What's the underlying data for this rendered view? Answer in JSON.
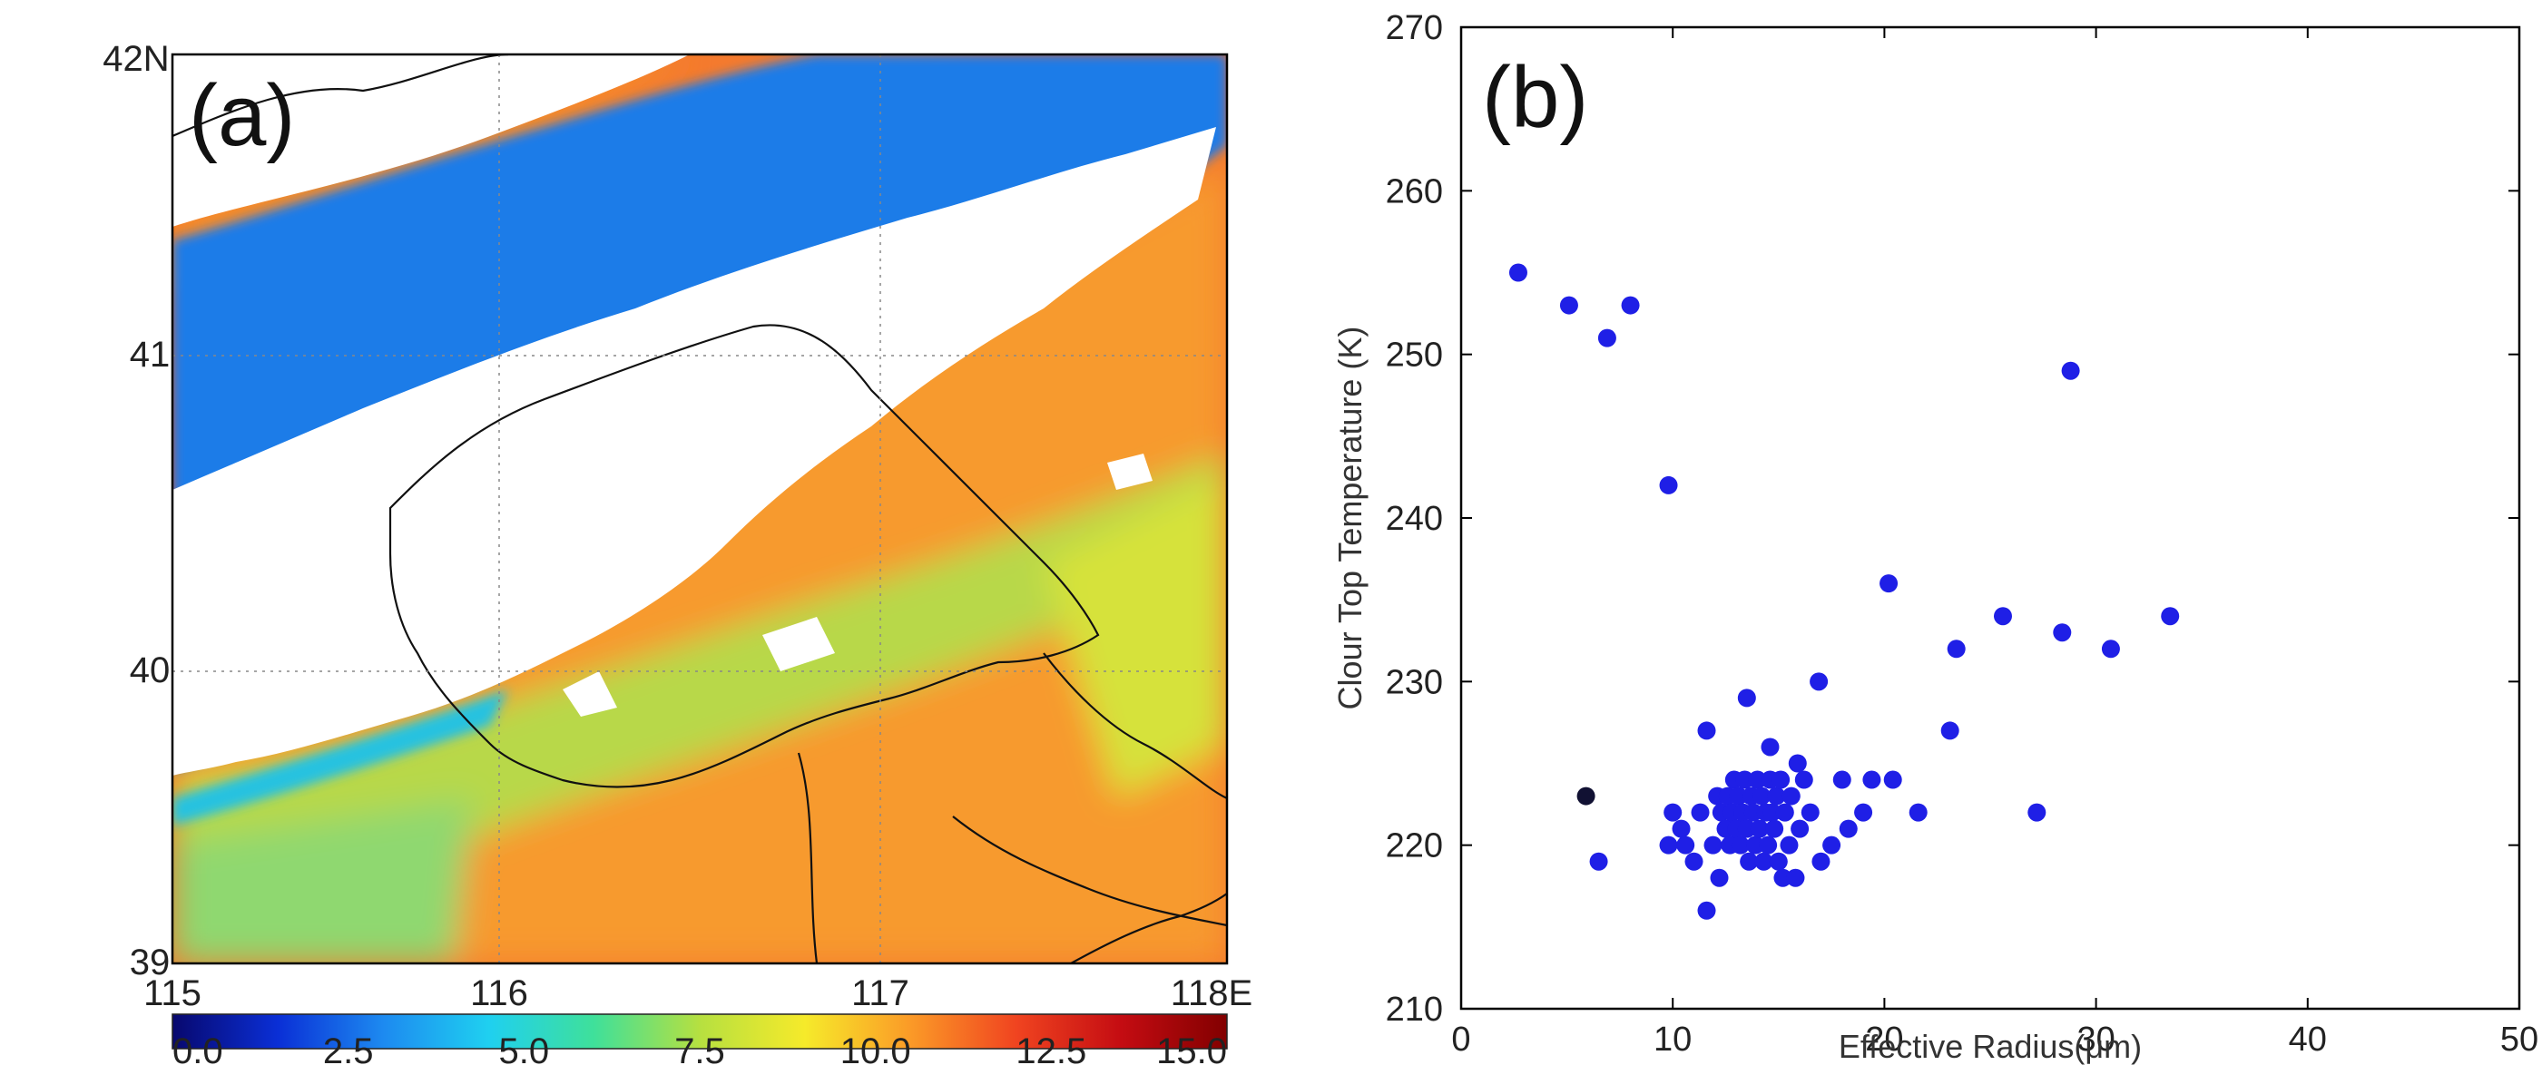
{
  "panel_a": {
    "label": "(a)",
    "x_ticks": [
      "115",
      "116",
      "117",
      "118E"
    ],
    "y_ticks": [
      "42N",
      "41",
      "40",
      "39"
    ],
    "colorbar": {
      "ticks": [
        "0.0",
        "2.5",
        "5.0",
        "7.5",
        "10.0",
        "12.5",
        "15.0"
      ],
      "min": 0,
      "max": 15,
      "colors": [
        "#08086e",
        "#0a2fd6",
        "#1d8af0",
        "#1fd0f0",
        "#3fe09a",
        "#b6e040",
        "#f6ea2a",
        "#fb9a27",
        "#f04420",
        "#c40c12",
        "#820000"
      ]
    },
    "map_colors": {
      "clear": "#ffffff",
      "low": "#2a62d8",
      "mid": "#9ed64a",
      "high": "#f05a28",
      "peak": "#c8141a",
      "border": "#000000"
    }
  },
  "chart_data": [
    {
      "type": "heatmap",
      "title": "(a)",
      "xlabel": "",
      "ylabel": "",
      "xlim": [
        115,
        118
      ],
      "ylim": [
        39,
        42
      ],
      "x_tick_labels": [
        "115",
        "116",
        "117",
        "118E"
      ],
      "y_tick_labels": [
        "42N",
        "41",
        "40",
        "39"
      ],
      "colorbar_range": [
        0,
        15
      ],
      "colorbar_tick_labels": [
        "0.0",
        "2.5",
        "5.0",
        "7.5",
        "10.0",
        "12.5",
        "15.0"
      ]
    },
    {
      "type": "scatter",
      "title": "(b)",
      "xlabel": "Effective Radius(μm)",
      "ylabel": "Clour Top Temperature (K)",
      "xlim": [
        0,
        50
      ],
      "ylim": [
        210,
        270
      ],
      "x_ticks": [
        0,
        10,
        20,
        30,
        40,
        50
      ],
      "y_ticks": [
        210,
        220,
        230,
        240,
        250,
        260,
        270
      ],
      "x_tick_labels": [
        "0",
        "10",
        "20",
        "30",
        "40",
        "50"
      ],
      "y_tick_labels": [
        "210",
        "220",
        "230",
        "240",
        "250",
        "260",
        "270"
      ],
      "point_color": "#1f1fe6",
      "highlight_color": "#111133",
      "points": [
        [
          2.7,
          255
        ],
        [
          5.1,
          253
        ],
        [
          6.9,
          251
        ],
        [
          8.0,
          253
        ],
        [
          9.8,
          242
        ],
        [
          28.8,
          249
        ],
        [
          20.2,
          236
        ],
        [
          25.6,
          234
        ],
        [
          28.4,
          233
        ],
        [
          30.7,
          232
        ],
        [
          33.5,
          234
        ],
        [
          23.4,
          232
        ],
        [
          16.9,
          230
        ],
        [
          13.5,
          229
        ],
        [
          23.1,
          227
        ],
        [
          11.6,
          227
        ],
        [
          14.6,
          226
        ],
        [
          6.5,
          219
        ],
        [
          9.8,
          220
        ],
        [
          10.0,
          222
        ],
        [
          10.4,
          221
        ],
        [
          10.6,
          220
        ],
        [
          11.0,
          219
        ],
        [
          11.3,
          222
        ],
        [
          11.6,
          216
        ],
        [
          11.9,
          220
        ],
        [
          12.1,
          223
        ],
        [
          12.2,
          218
        ],
        [
          12.3,
          222
        ],
        [
          12.5,
          221
        ],
        [
          12.6,
          223
        ],
        [
          12.7,
          220
        ],
        [
          12.8,
          222
        ],
        [
          12.9,
          224
        ],
        [
          13.0,
          221
        ],
        [
          13.1,
          223
        ],
        [
          13.2,
          220
        ],
        [
          13.3,
          222
        ],
        [
          13.4,
          224
        ],
        [
          13.5,
          221
        ],
        [
          13.6,
          219
        ],
        [
          13.7,
          223
        ],
        [
          13.8,
          222
        ],
        [
          13.9,
          220
        ],
        [
          14.0,
          224
        ],
        [
          14.1,
          221
        ],
        [
          14.2,
          223
        ],
        [
          14.3,
          219
        ],
        [
          14.4,
          222
        ],
        [
          14.5,
          220
        ],
        [
          14.6,
          224
        ],
        [
          14.7,
          222
        ],
        [
          14.8,
          221
        ],
        [
          14.9,
          223
        ],
        [
          15.0,
          219
        ],
        [
          15.1,
          224
        ],
        [
          15.2,
          218
        ],
        [
          15.3,
          222
        ],
        [
          15.5,
          220
        ],
        [
          15.6,
          223
        ],
        [
          15.8,
          218
        ],
        [
          15.9,
          225
        ],
        [
          16.0,
          221
        ],
        [
          16.2,
          224
        ],
        [
          16.5,
          222
        ],
        [
          17.0,
          219
        ],
        [
          17.5,
          220
        ],
        [
          18.0,
          224
        ],
        [
          18.3,
          221
        ],
        [
          19.0,
          222
        ],
        [
          19.4,
          224
        ],
        [
          20.4,
          224
        ],
        [
          21.6,
          222
        ],
        [
          27.2,
          222
        ]
      ],
      "highlight_points": [
        [
          5.9,
          223
        ]
      ]
    }
  ]
}
